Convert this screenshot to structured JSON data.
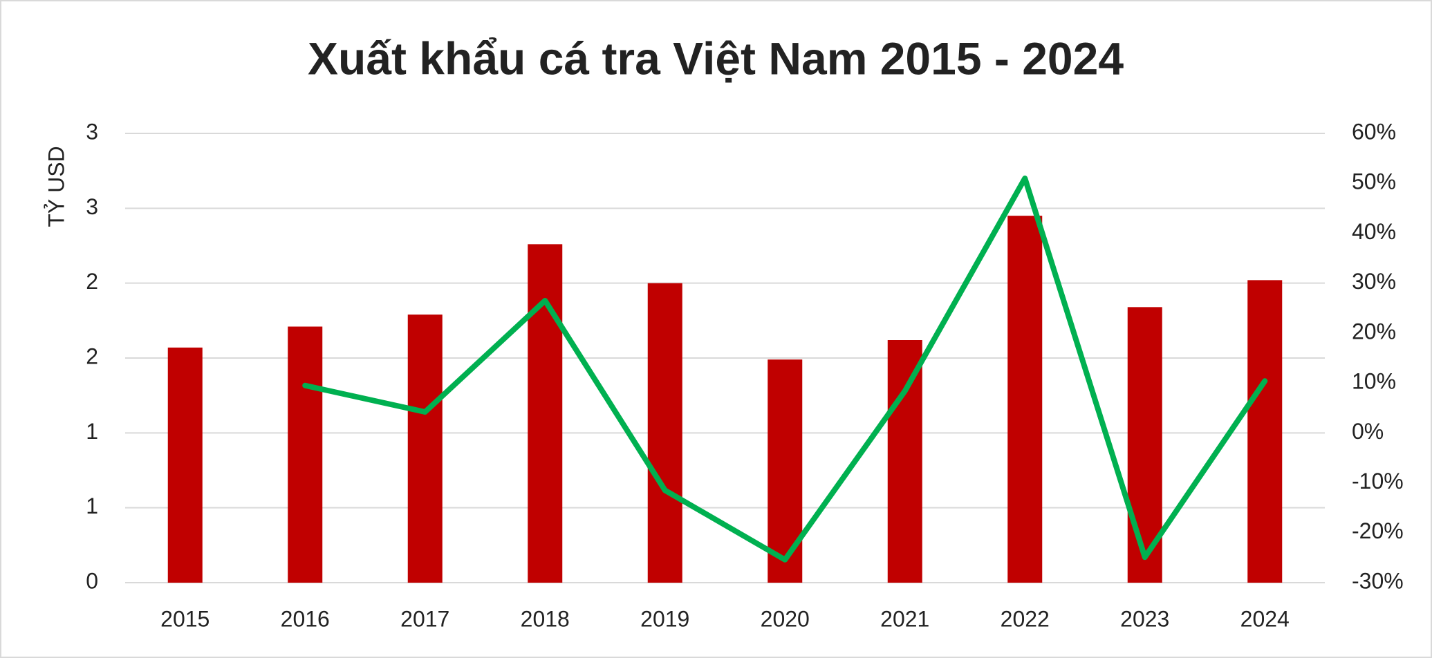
{
  "chart_data": {
    "type": "bar-line",
    "title": "Xuất khẩu cá tra Việt Nam 2015 - 2024",
    "y_label": "TỶ USD",
    "categories": [
      "2015",
      "2016",
      "2017",
      "2018",
      "2019",
      "2020",
      "2021",
      "2022",
      "2023",
      "2024"
    ],
    "series": [
      {
        "type": "bar",
        "color": "#c00000",
        "values": [
          1.57,
          1.71,
          1.79,
          2.26,
          2.0,
          1.49,
          1.62,
          2.45,
          1.84,
          2.02
        ]
      },
      {
        "type": "line",
        "axis": "y2",
        "color": "#00b050",
        "values": [
          null,
          9.5,
          4.2,
          26.5,
          -11.5,
          -25.4,
          8.4,
          51,
          -24.9,
          10.4
        ]
      }
    ],
    "ylim": [
      0,
      3
    ],
    "yticks": [
      0,
      {
        "value": 0.5,
        "label": "1"
      },
      1,
      {
        "value": 1.5,
        "label": "2"
      },
      2,
      {
        "value": 2.5,
        "label": "3"
      },
      3
    ],
    "y2lim": [
      -30,
      60
    ],
    "y2ticks": [
      {
        "value": -30,
        "label": "-30%"
      },
      {
        "value": -20,
        "label": "-20%"
      },
      {
        "value": -10,
        "label": "-10%"
      },
      {
        "value": 0,
        "label": "0%"
      },
      {
        "value": 10,
        "label": "10%"
      },
      {
        "value": 20,
        "label": "20%"
      },
      {
        "value": 30,
        "label": "30%"
      },
      {
        "value": 40,
        "label": "40%"
      },
      {
        "value": 50,
        "label": "50%"
      },
      {
        "value": 60,
        "label": "60%"
      }
    ],
    "grid": true
  }
}
